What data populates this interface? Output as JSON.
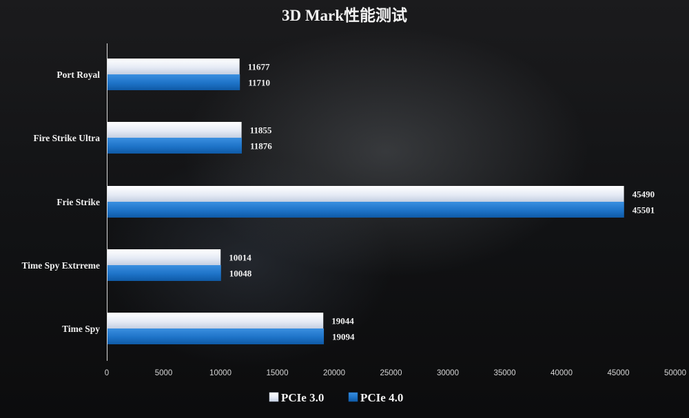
{
  "chart_data": {
    "type": "bar",
    "orientation": "horizontal",
    "title": "3D Mark性能测试",
    "categories": [
      "Port Royal",
      "Fire Strike Ultra",
      "Frie Strike",
      "Time Spy Extrreme",
      "Time Spy"
    ],
    "series": [
      {
        "name": "PCIe 3.0",
        "values": [
          11677,
          11855,
          45490,
          10014,
          19044
        ],
        "color": "#e9eef8"
      },
      {
        "name": "PCIe 4.0",
        "values": [
          11710,
          11876,
          45501,
          10048,
          19094
        ],
        "color": "#1e73c8"
      }
    ],
    "xlim": [
      0,
      50000
    ],
    "xticks": [
      "0",
      "5000",
      "10000",
      "15000",
      "20000",
      "25000",
      "30000",
      "35000",
      "40000",
      "45000",
      "50000"
    ],
    "xticks_values": [
      0,
      5000,
      10000,
      15000,
      20000,
      25000,
      30000,
      35000,
      40000,
      45000,
      50000
    ],
    "grid": false,
    "legend_position": "bottom-center",
    "data_labels": true
  }
}
